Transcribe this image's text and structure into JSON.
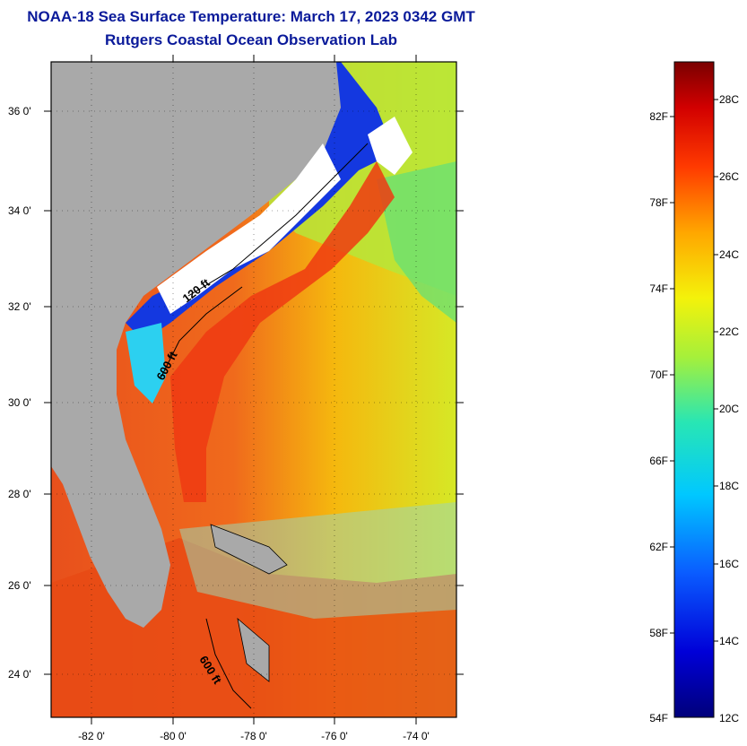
{
  "title": "NOAA-18 Sea Surface Temperature:  March 17, 2023 0342 GMT",
  "subtitle": "Rutgers Coastal Ocean Observation Lab",
  "map": {
    "lat_labels": [
      "36 0'",
      "34 0'",
      "32 0'",
      "30 0'",
      "28 0'",
      "26 0'",
      "24 0'"
    ],
    "lon_labels": [
      "-82 0'",
      "-80 0'",
      "-78 0'",
      "-76 0'",
      "-74 0'"
    ],
    "contours": [
      "120 ft",
      "600 ft",
      "600 ft"
    ],
    "colors": {
      "land": "#a9a9a9",
      "cloud": "#ffffff",
      "warm": "#e8501c",
      "cool": "#1f3fd8"
    }
  },
  "colorbar": {
    "fahrenheit": [
      "82F",
      "78F",
      "74F",
      "70F",
      "66F",
      "62F",
      "58F",
      "54F"
    ],
    "celsius": [
      "28C",
      "26C",
      "24C",
      "22C",
      "20C",
      "18C",
      "16C",
      "14C",
      "12C"
    ]
  }
}
